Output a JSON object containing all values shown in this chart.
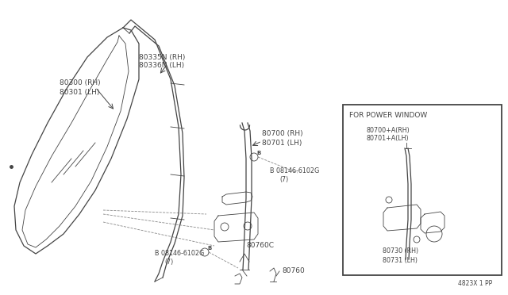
{
  "bg_color": "#ffffff",
  "line_color": "#444444",
  "footer_text": "4823X 1 PP",
  "labels": {
    "glass_rh": "80300 (RH)",
    "glass_lh": "80301 (LH)",
    "run_rh": "80335N (RH)",
    "run_lh": "80336N (LH)",
    "reg_rh": "80700 (RH)",
    "reg_lh": "80701 (LH)",
    "bolt_top": "B 08146-6102G",
    "bolt_top2": "(7)",
    "bolt_bot": "B 08146-6102G",
    "bolt_bot2": "(7)",
    "stopper": "80760C",
    "clip": "80760",
    "pw_title": "FOR POWER WINDOW",
    "pw_reg_rh": "80700+A(RH)",
    "pw_reg_lh": "80701+A(LH)",
    "pw_asm_rh": "80730 (RH)",
    "pw_asm_lh": "80731 (LH)"
  }
}
